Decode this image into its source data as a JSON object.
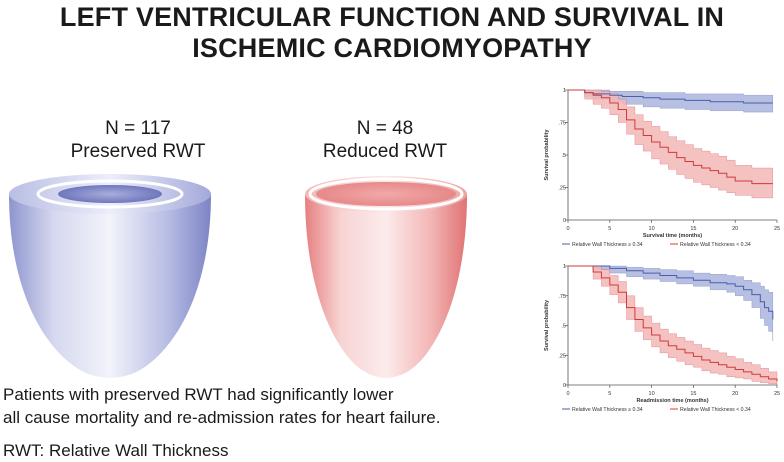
{
  "title": {
    "line1": "LEFT VENTRICULAR FUNCTION AND SURVIVAL IN",
    "line2": "ISCHEMIC CARDIOMYOPATHY"
  },
  "groups": {
    "preserved": {
      "n": "N = 117",
      "label": "Preserved RWT",
      "color": "#8f96cf"
    },
    "reduced": {
      "n": "N = 48",
      "label": "Reduced RWT",
      "color": "#ec8f8f"
    }
  },
  "footer": {
    "line1": "Patients with preserved RWT had significantly lower",
    "line2": "all cause mortality and re-admission rates for heart failure.",
    "line3": "RWT: Relative Wall Thickness"
  },
  "chart_data": [
    {
      "type": "line",
      "title": "",
      "xlabel": "Survival time (months)",
      "ylabel": "Survival probability",
      "xlim": [
        0,
        25
      ],
      "ylim": [
        0,
        1
      ],
      "xticks": [
        "0",
        "5",
        "10",
        "15",
        "20",
        "25"
      ],
      "yticks": [
        "0",
        ".25",
        ".5",
        ".75",
        "1"
      ],
      "legend": "bottom",
      "series": [
        {
          "name": "Relative Wall Thickness ≥ 0.34",
          "color": "#4a5fa8",
          "band": "#aab4dd",
          "x": [
            0,
            2,
            3,
            5,
            6.5,
            9,
            11,
            14,
            17,
            19,
            21,
            23,
            24.5
          ],
          "y": [
            1,
            0.98,
            0.97,
            0.96,
            0.95,
            0.94,
            0.93,
            0.92,
            0.91,
            0.91,
            0.9,
            0.9,
            0.9
          ],
          "lower": [
            1,
            0.95,
            0.93,
            0.91,
            0.89,
            0.87,
            0.86,
            0.85,
            0.84,
            0.84,
            0.83,
            0.83,
            0.83
          ],
          "upper": [
            1,
            1,
            1,
            0.99,
            0.99,
            0.98,
            0.98,
            0.97,
            0.97,
            0.97,
            0.96,
            0.96,
            0.96
          ]
        },
        {
          "name": "Relative Wall Thickness < 0.34",
          "color": "#d23a3a",
          "band": "#f3b7b7",
          "x": [
            0,
            2,
            3,
            4,
            5,
            6,
            7,
            8,
            9,
            10,
            11,
            12,
            13,
            14,
            15,
            16,
            17,
            18,
            19,
            20,
            22,
            24.5
          ],
          "y": [
            1,
            0.98,
            0.96,
            0.94,
            0.9,
            0.85,
            0.77,
            0.7,
            0.65,
            0.6,
            0.56,
            0.52,
            0.48,
            0.45,
            0.42,
            0.4,
            0.38,
            0.36,
            0.33,
            0.3,
            0.28,
            0.28
          ],
          "lower": [
            1,
            0.93,
            0.89,
            0.86,
            0.81,
            0.75,
            0.66,
            0.58,
            0.53,
            0.47,
            0.43,
            0.39,
            0.35,
            0.32,
            0.29,
            0.27,
            0.25,
            0.23,
            0.21,
            0.19,
            0.17,
            0.17
          ],
          "upper": [
            1,
            1,
            1,
            0.99,
            0.97,
            0.93,
            0.87,
            0.81,
            0.76,
            0.72,
            0.68,
            0.64,
            0.61,
            0.58,
            0.55,
            0.53,
            0.51,
            0.49,
            0.46,
            0.42,
            0.4,
            0.4
          ]
        }
      ]
    },
    {
      "type": "line",
      "title": "",
      "xlabel": "Readmission time (months)",
      "ylabel": "Survival probability",
      "xlim": [
        0,
        25
      ],
      "ylim": [
        0,
        1
      ],
      "xticks": [
        "0",
        "5",
        "10",
        "15",
        "20",
        "25"
      ],
      "yticks": [
        "0",
        ".25",
        ".5",
        ".75",
        "1"
      ],
      "legend": "bottom",
      "series": [
        {
          "name": "Relative Wall Thickness ≥ 0.34",
          "color": "#4a5fa8",
          "band": "#aab4dd",
          "x": [
            0,
            3,
            5,
            7,
            9,
            11,
            13,
            15,
            17,
            19,
            20,
            21,
            22,
            23,
            23.5,
            24,
            24.5
          ],
          "y": [
            1,
            1,
            0.98,
            0.96,
            0.94,
            0.92,
            0.9,
            0.88,
            0.86,
            0.85,
            0.83,
            0.8,
            0.76,
            0.7,
            0.65,
            0.62,
            0.55
          ],
          "lower": [
            1,
            0.97,
            0.94,
            0.91,
            0.89,
            0.87,
            0.85,
            0.83,
            0.8,
            0.78,
            0.75,
            0.71,
            0.65,
            0.56,
            0.5,
            0.45,
            0.37
          ],
          "upper": [
            1,
            1,
            1,
            0.99,
            0.98,
            0.97,
            0.96,
            0.94,
            0.93,
            0.92,
            0.91,
            0.88,
            0.86,
            0.83,
            0.8,
            0.78,
            0.73
          ]
        },
        {
          "name": "Relative Wall Thickness < 0.34",
          "color": "#d23a3a",
          "band": "#f3b7b7",
          "x": [
            0,
            3,
            4,
            5,
            6,
            7,
            8,
            9,
            10,
            11,
            12,
            13,
            14,
            15,
            16,
            17,
            18,
            19,
            20,
            21,
            22,
            23,
            24,
            25
          ],
          "y": [
            1,
            0.95,
            0.9,
            0.84,
            0.78,
            0.65,
            0.55,
            0.48,
            0.42,
            0.37,
            0.33,
            0.3,
            0.27,
            0.24,
            0.21,
            0.19,
            0.17,
            0.15,
            0.13,
            0.11,
            0.09,
            0.07,
            0.05,
            0.03
          ],
          "lower": [
            1,
            0.89,
            0.83,
            0.76,
            0.69,
            0.55,
            0.45,
            0.38,
            0.32,
            0.27,
            0.23,
            0.2,
            0.17,
            0.15,
            0.12,
            0.1,
            0.09,
            0.07,
            0.06,
            0.05,
            0.03,
            0.02,
            0.01,
            0.0
          ],
          "upper": [
            1,
            1,
            0.97,
            0.92,
            0.87,
            0.75,
            0.65,
            0.58,
            0.52,
            0.47,
            0.43,
            0.4,
            0.37,
            0.34,
            0.31,
            0.29,
            0.27,
            0.24,
            0.22,
            0.19,
            0.17,
            0.14,
            0.11,
            0.08
          ]
        }
      ]
    }
  ]
}
